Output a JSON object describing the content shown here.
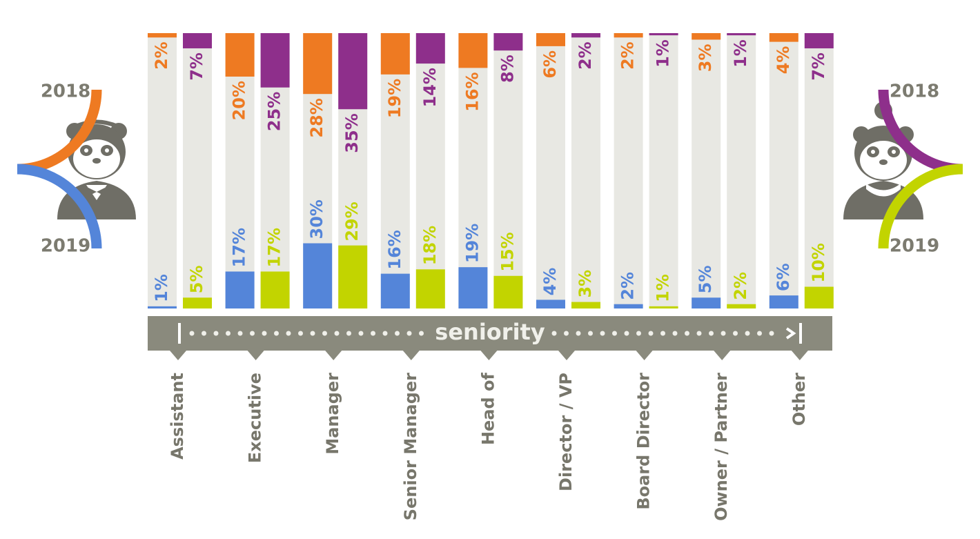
{
  "chart_data": {
    "type": "bar",
    "axis_label": "seniority",
    "categories": [
      "Assistant",
      "Executive",
      "Manager",
      "Senior Manager",
      "Head of",
      "Director / VP",
      "Board Director",
      "Owner / Partner",
      "Other"
    ],
    "series": [
      {
        "name": "2018",
        "color": "#ee7a22",
        "values": [
          2,
          20,
          28,
          19,
          16,
          6,
          2,
          3,
          4
        ],
        "value_labels": [
          "2%",
          "20%",
          "28%",
          "19%",
          "16%",
          "6%",
          "2%",
          "3%",
          "4%"
        ]
      },
      {
        "name": "2019",
        "color": "#5485d9",
        "values": [
          1,
          17,
          30,
          16,
          19,
          4,
          2,
          5,
          6
        ],
        "value_labels": [
          "1%",
          "17%",
          "30%",
          "16%",
          "19%",
          "4%",
          "2%",
          "5%",
          "6%"
        ]
      },
      {
        "name": "2018",
        "color": "#8e2f8b",
        "values": [
          7,
          25,
          35,
          14,
          8,
          2,
          1,
          1,
          7
        ],
        "value_labels": [
          "7%",
          "25%",
          "35%",
          "14%",
          "8%",
          "2%",
          "1%",
          "1%",
          "7%"
        ]
      },
      {
        "name": "2019",
        "color": "#c2d400",
        "values": [
          5,
          17,
          29,
          18,
          15,
          3,
          1,
          2,
          10
        ],
        "value_labels": [
          "5%",
          "17%",
          "29%",
          "18%",
          "15%",
          "3%",
          "1%",
          "2%",
          "10%"
        ]
      }
    ]
  }
}
